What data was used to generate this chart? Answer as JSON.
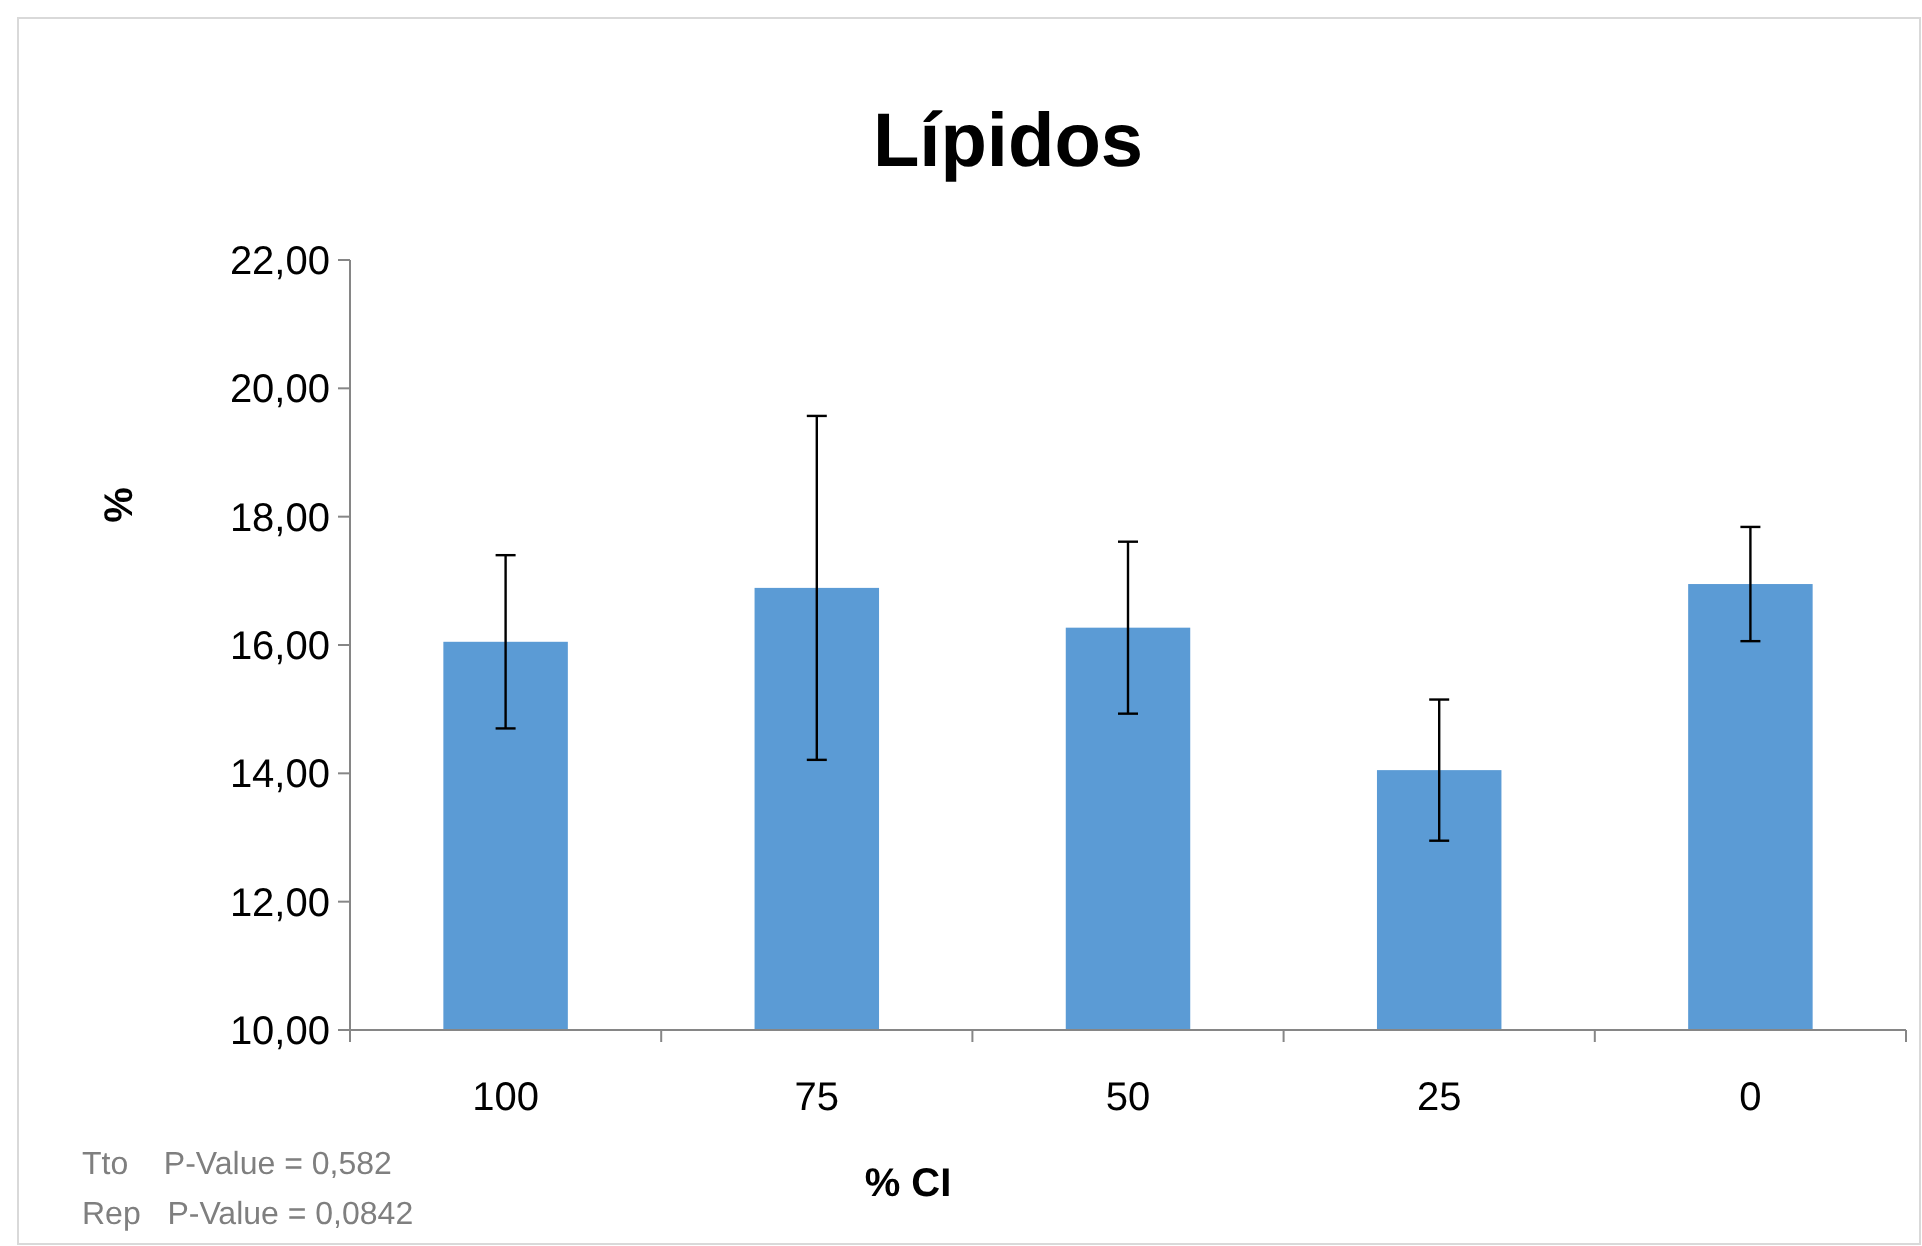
{
  "chart_data": {
    "type": "bar",
    "title": "Lípidos",
    "xlabel": "% CI",
    "ylabel": "%",
    "categories": [
      "100",
      "75",
      "50",
      "25",
      "0"
    ],
    "values": [
      16.05,
      16.89,
      16.27,
      14.05,
      16.95
    ],
    "errors": [
      1.35,
      2.68,
      1.34,
      1.1,
      0.89
    ],
    "color": "#5b9bd5",
    "ylim": [
      10,
      22
    ],
    "yticks": [
      {
        "value": 10,
        "label": "10,00"
      },
      {
        "value": 12,
        "label": "12,00"
      },
      {
        "value": 14,
        "label": "14,00"
      },
      {
        "value": 16,
        "label": "16,00"
      },
      {
        "value": 18,
        "label": "18,00"
      },
      {
        "value": 20,
        "label": "20,00"
      },
      {
        "value": 22,
        "label": "22,00"
      }
    ],
    "grid": false,
    "annotations": [
      "Tto    P-Value = 0,582",
      "Rep   P-Value = 0,0842"
    ]
  }
}
